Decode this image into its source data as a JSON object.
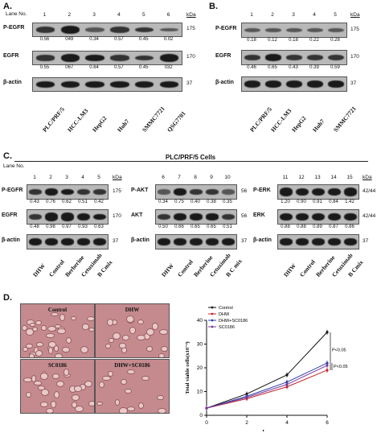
{
  "panelA": {
    "letter": "A.",
    "lane_title": "Lane No.",
    "lanes": [
      "1",
      "2",
      "3",
      "4",
      "5",
      "6"
    ],
    "kda": "kDa",
    "rows": [
      {
        "label": "P-EGFR",
        "kda": "175",
        "values": [
          "0.56",
          "049",
          "0.34",
          "0.57",
          "0.45",
          "0.02"
        ]
      },
      {
        "label": "EGFR",
        "kda": "170",
        "values": [
          "0.55",
          "067",
          "0.64",
          "0.57",
          "0.45",
          "032"
        ]
      },
      {
        "label": "β-actin",
        "kda": "37",
        "values": []
      }
    ],
    "cells": [
      "PLC/PRF/5",
      "HCC-LM3",
      "HepG2",
      "Huh7",
      "SMMC7721",
      "QSG7701"
    ]
  },
  "panelB": {
    "letter": "B.",
    "lanes": [
      "1",
      "2",
      "3",
      "4",
      "5"
    ],
    "kda": "kDa",
    "rows": [
      {
        "label": "P-EGFR",
        "kda": "175",
        "values": [
          "0.18",
          "0.12",
          "0.18",
          "0.22",
          "0.28"
        ]
      },
      {
        "label": "EGFR",
        "kda": "170",
        "values": [
          "0.46",
          "0.65",
          "0.43",
          "0.39",
          "0.59"
        ]
      },
      {
        "label": "β-actin",
        "kda": "37",
        "values": []
      }
    ],
    "cells": [
      "PLC/PRF/5",
      "HCC-LM3",
      "HepG2",
      "Huh7",
      "SMMC7721"
    ]
  },
  "panelC": {
    "letter": "C.",
    "title": "PLC/PRF/5 Cells",
    "lane_title": "Lane No.",
    "kda": "kDa",
    "groups": [
      {
        "lanes": [
          "1",
          "2",
          "3",
          "4",
          "5"
        ],
        "rows": [
          {
            "label": "P-EGFR",
            "kda": "175",
            "values": [
              "0.43",
              "0.76",
              "0.62",
              "0.51",
              "0.42"
            ]
          },
          {
            "label": "EGFR",
            "kda": "170",
            "values": [
              "0.48",
              "0.98",
              "0.97",
              "0.93",
              "0.63"
            ]
          },
          {
            "label": "β-actin",
            "kda": "37",
            "values": []
          }
        ]
      },
      {
        "lanes": [
          "6",
          "7",
          "8",
          "9",
          "10"
        ],
        "rows": [
          {
            "label": "P-AKT",
            "kda": "56",
            "values": [
              "0.34",
              "0.75",
              "0.40",
              "0.38",
              "0.35"
            ]
          },
          {
            "label": "AKT",
            "kda": "56",
            "values": [
              "0.50",
              "0.66",
              "0.65",
              "0.65",
              "0.51"
            ]
          },
          {
            "label": "β-actin",
            "kda": "37",
            "values": []
          }
        ]
      },
      {
        "lanes": [
          "11",
          "12",
          "13",
          "14",
          "15"
        ],
        "rows": [
          {
            "label": "P-ERK",
            "kda": "42/44",
            "values": [
              "1.20",
              "0.90",
              "0.91",
              "0.84",
              "1.42"
            ]
          },
          {
            "label": "ERK",
            "kda": "42/44",
            "values": [
              "0.88",
              "0.88",
              "0.89",
              "0.87",
              "0.86"
            ]
          },
          {
            "label": "β-actin",
            "kda": "37",
            "values": []
          }
        ]
      }
    ],
    "treatments": [
      [
        "DHW",
        "Control",
        "Berberine",
        "Cetuximab",
        "B Cmix"
      ],
      [
        "DHW",
        "Control",
        "Berberine",
        "Cetuximab",
        "B C mix"
      ],
      [
        "DHW",
        "Control",
        "Berberine",
        "Cetuximab",
        "B Cmix"
      ]
    ]
  },
  "panelD": {
    "letter": "D.",
    "images": [
      "Control",
      "DHW",
      "SC0186",
      "DHW+SC0186"
    ]
  },
  "chart_data": {
    "type": "line",
    "x": [
      0,
      2,
      4,
      6
    ],
    "xlabel": "days",
    "ylabel": "Total viable cells(x10⁻⁴)",
    "ylim": [
      0,
      40
    ],
    "yticks": [
      0,
      10,
      20,
      30,
      40
    ],
    "xticks": [
      0,
      2,
      4,
      6
    ],
    "legend_position": "top-left",
    "series": [
      {
        "name": "Control",
        "color": "#111111",
        "values": [
          3,
          9,
          17,
          35
        ]
      },
      {
        "name": "DHW",
        "color": "#c0282d",
        "values": [
          3,
          7,
          12,
          19
        ]
      },
      {
        "name": "DHW+SC0186",
        "color": "#2b3fa8",
        "values": [
          3,
          8,
          14,
          22
        ]
      },
      {
        "name": "SC0186",
        "color": "#7d3a9a",
        "values": [
          3,
          7.5,
          13,
          21
        ]
      }
    ],
    "annotations": [
      "P<0.05",
      "P<0.05"
    ]
  }
}
